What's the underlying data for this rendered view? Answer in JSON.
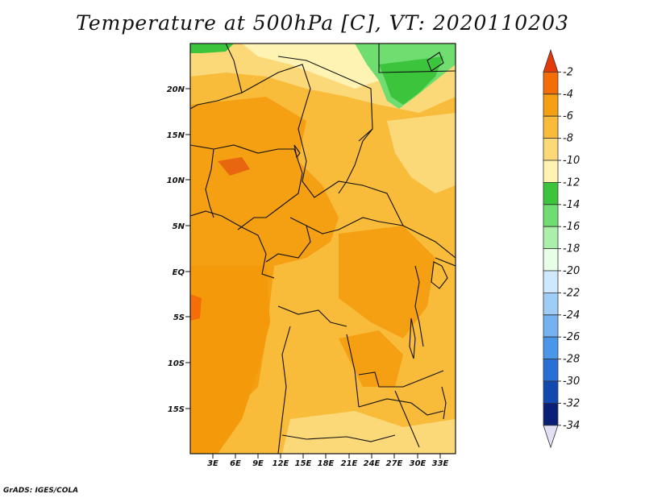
{
  "title": "Temperature at 500hPa [C], VT: 2020110203",
  "credit": "GrADS: IGES/COLA",
  "map": {
    "lat_ticks": [
      "20N",
      "15N",
      "10N",
      "5N",
      "EQ",
      "5S",
      "10S",
      "15S"
    ],
    "lon_ticks": [
      "3E",
      "6E",
      "9E",
      "12E",
      "15E",
      "18E",
      "21E",
      "24E",
      "27E",
      "30E",
      "33E"
    ]
  },
  "colorbar": {
    "labels": [
      "-2",
      "-4",
      "-6",
      "-8",
      "-10",
      "-12",
      "-14",
      "-16",
      "-18",
      "-20",
      "-22",
      "-24",
      "-26",
      "-28",
      "-30",
      "-32",
      "-34"
    ],
    "colors": [
      "#e33a0b",
      "#f46d06",
      "#f5a013",
      "#f8bb3a",
      "#fcd978",
      "#fef3b2",
      "#3cc43c",
      "#6fdd6f",
      "#aaf0aa",
      "#e6ffe6",
      "#cfe8fb",
      "#9fcdf7",
      "#74b3f0",
      "#4a96e8",
      "#2870d6",
      "#1249b0",
      "#0a2076",
      "#e3e0f5"
    ]
  }
}
